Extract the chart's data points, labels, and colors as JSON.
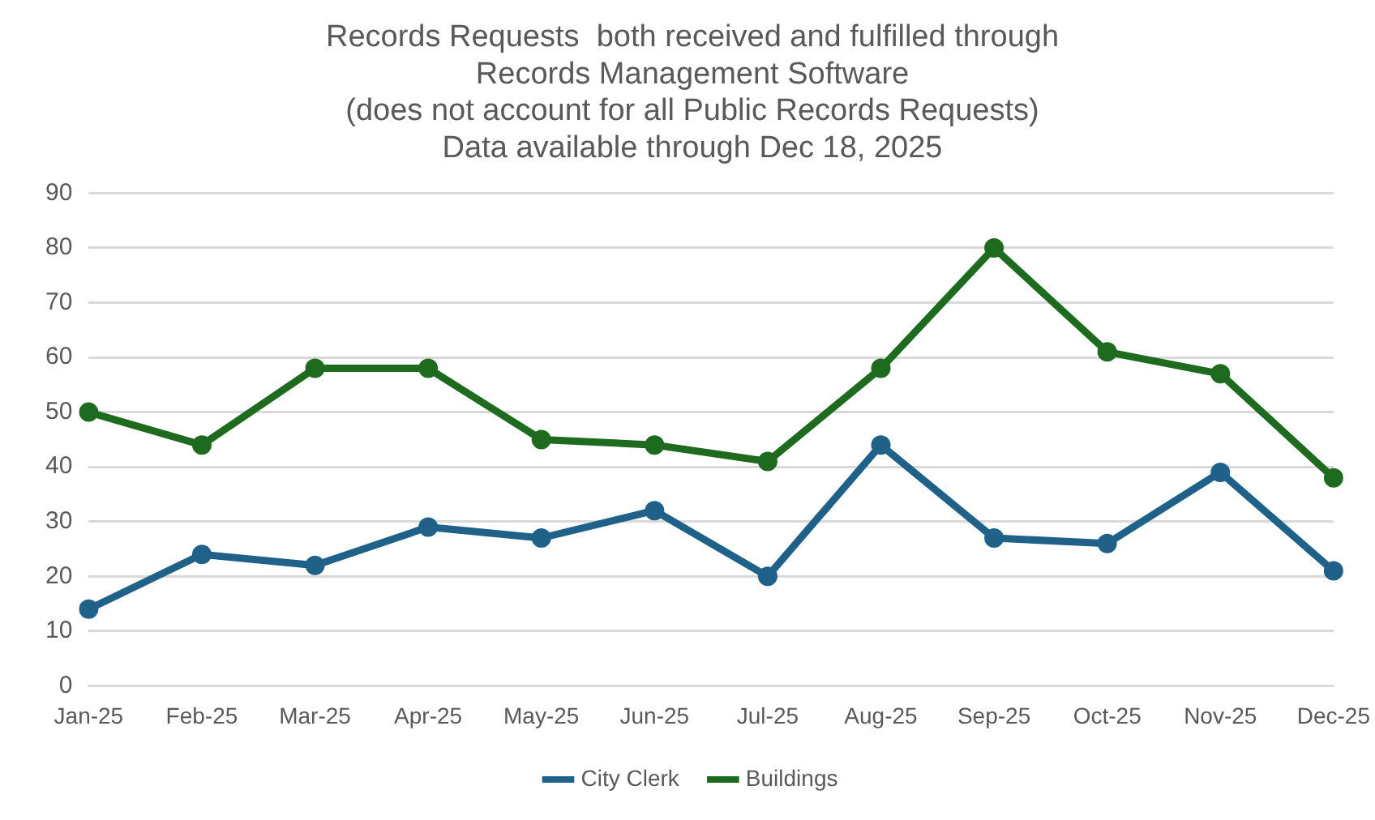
{
  "chart_data": {
    "type": "line",
    "title": "Records Requests  both received and fulfilled through\nRecords Management Software\n(does not account for all Public Records Requests)\nData available through Dec 18, 2025",
    "categories": [
      "Jan-25",
      "Feb-25",
      "Mar-25",
      "Apr-25",
      "May-25",
      "Jun-25",
      "Jul-25",
      "Aug-25",
      "Sep-25",
      "Oct-25",
      "Nov-25",
      "Dec-25"
    ],
    "series": [
      {
        "name": "City Clerk",
        "color": "#1f6188",
        "values": [
          14,
          24,
          22,
          29,
          27,
          32,
          20,
          44,
          27,
          26,
          39,
          21
        ]
      },
      {
        "name": "Buildings",
        "color": "#1e6b20",
        "values": [
          50,
          44,
          58,
          58,
          45,
          44,
          41,
          58,
          80,
          61,
          57,
          38
        ]
      }
    ],
    "ylim": [
      0,
      90
    ],
    "yticks": [
      0,
      10,
      20,
      30,
      40,
      50,
      60,
      70,
      80,
      90
    ],
    "grid": "y",
    "legend": "bottom",
    "marker": "circle",
    "line_style": "solid"
  }
}
